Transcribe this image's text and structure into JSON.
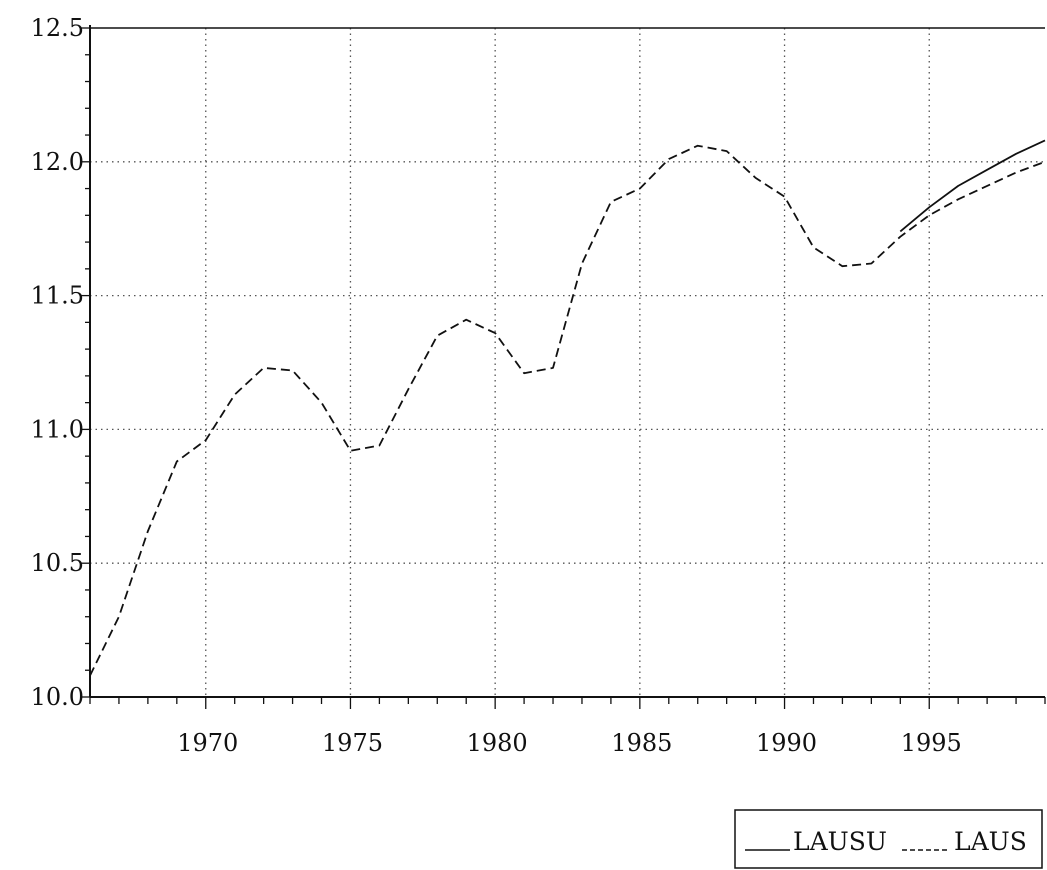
{
  "header": {
    "text": ""
  },
  "chart_data": {
    "type": "line",
    "title": "",
    "xlabel": "",
    "ylabel": "",
    "xlim": [
      1966,
      1999
    ],
    "ylim": [
      10.0,
      12.5
    ],
    "x_ticks": [
      {
        "value": 1970,
        "label": "1970"
      },
      {
        "value": 1975,
        "label": "1975"
      },
      {
        "value": 1980,
        "label": "1980"
      },
      {
        "value": 1985,
        "label": "1985"
      },
      {
        "value": 1990,
        "label": "1990"
      },
      {
        "value": 1995,
        "label": "1995"
      }
    ],
    "y_ticks": [
      {
        "value": 10.0,
        "label": "10.0"
      },
      {
        "value": 10.5,
        "label": "10.5"
      },
      {
        "value": 11.0,
        "label": "11.0"
      },
      {
        "value": 11.5,
        "label": "11.5"
      },
      {
        "value": 12.0,
        "label": "12.0"
      },
      {
        "value": 12.5,
        "label": "12.5"
      }
    ],
    "grid": true,
    "legend_position": "bottom-right",
    "series": [
      {
        "name": "LAUSU",
        "style": "solid",
        "color": "#111111",
        "x": [
          1994,
          1995,
          1996,
          1997,
          1998,
          1999
        ],
        "values": [
          11.74,
          11.83,
          11.91,
          11.97,
          12.03,
          12.08
        ]
      },
      {
        "name": "LAUS",
        "style": "dashed",
        "color": "#111111",
        "x": [
          1966,
          1967,
          1968,
          1969,
          1970,
          1971,
          1972,
          1973,
          1974,
          1975,
          1976,
          1977,
          1978,
          1979,
          1980,
          1981,
          1982,
          1983,
          1984,
          1985,
          1986,
          1987,
          1988,
          1989,
          1990,
          1991,
          1992,
          1993,
          1994,
          1995,
          1996,
          1997,
          1998,
          1999
        ],
        "values": [
          10.08,
          10.3,
          10.62,
          10.88,
          10.96,
          11.13,
          11.23,
          11.22,
          11.1,
          10.92,
          10.94,
          11.15,
          11.35,
          11.41,
          11.36,
          11.21,
          11.23,
          11.62,
          11.85,
          11.9,
          12.01,
          12.06,
          12.04,
          11.94,
          11.87,
          11.68,
          11.61,
          11.62,
          11.72,
          11.8,
          11.86,
          11.91,
          11.96,
          12.0
        ]
      }
    ]
  }
}
